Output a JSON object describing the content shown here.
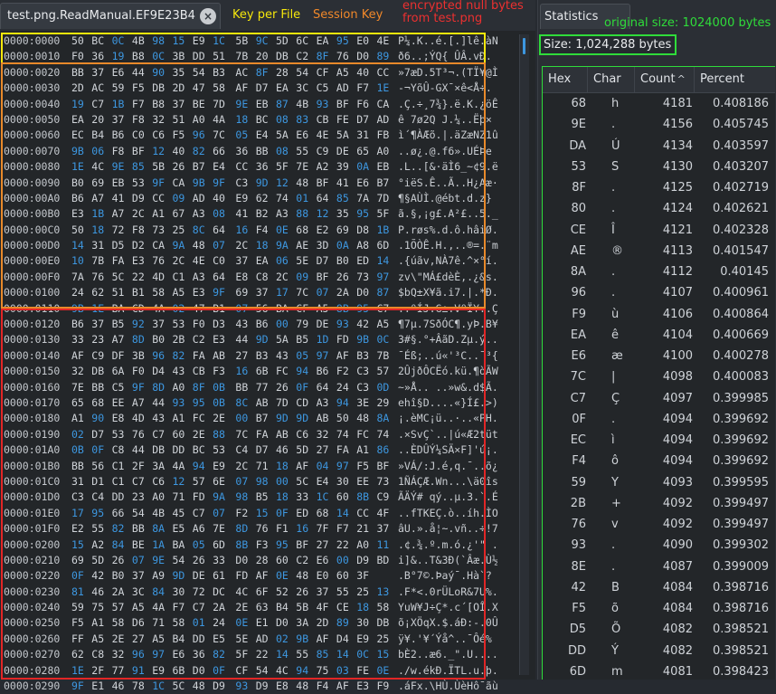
{
  "tab": {
    "title": "test.png.ReadManual.EF9E23B4",
    "close": "×"
  },
  "annotations": {
    "key_per_file": "Key per File",
    "session_key": "Session Key",
    "null_bytes_line1": "encrypted null bytes",
    "null_bytes_line2": "from test.png"
  },
  "colors": {
    "yellow": "#f5e70c",
    "orange": "#e8892a",
    "red": "#e22626",
    "green": "#2fdc3a",
    "hexblue": "#3d97e0"
  },
  "hex_rows": [
    {
      "addr": "0000:0000",
      "bytes": "50 BC 0C 4B 98 15 E9 1C 5B 9C 5D 6C EA 95 E0 4E",
      "text": "P¼.K..é.[.]lê.àN"
    },
    {
      "addr": "0000:0010",
      "bytes": "F0 36 19 B8 0C 3B DD 51 7B 20 DB C2 8F 76 D0 89",
      "text": "ð6..;ÝQ{ ÛÂ.vÐ."
    },
    {
      "addr": "0000:0020",
      "bytes": "BB 37 E6 44 90 35 54 B3 AC 8F 28 54 CF A5 40 CC",
      "text": "»7æD.5T³¬.(TÏ¥@Ì"
    },
    {
      "addr": "0000:0030",
      "bytes": "2D AC 59 F5 DB 2D 47 58 AF D7 EA 3C C5 AD F7 1E",
      "text": "-¬YõÛ-GX¯×ê<Å­÷."
    },
    {
      "addr": "0000:0040",
      "bytes": "19 C7 1B F7 B8 37 BE 7D 9E EB 87 4B 93 BF F6 CA",
      "text": ".Ç.÷¸7¾}.ë.K.¿öÊ"
    },
    {
      "addr": "0000:0050",
      "bytes": "EA 20 37 F8 32 51 A0 4A 18 BC 08 83 CB FE D7 AD",
      "text": "ê 7ø2Q J.¼..Ëþ×­"
    },
    {
      "addr": "0000:0060",
      "bytes": "EC B4 B6 C0 C6 F5 96 7C 05 E4 5A E6 4E 5A 31 FB",
      "text": "ì´¶ÀÆõ.|.äZæNZ1û"
    },
    {
      "addr": "0000:0070",
      "bytes": "9B 06 F8 BF 12 40 82 66 36 BB 08 55 C9 DE 65 A0",
      "text": "..ø¿.@.f6».UÉÞe "
    },
    {
      "addr": "0000:0080",
      "bytes": "1E 4C 9E 85 5B 26 B7 E4 CC 36 5F 7E A2 39 0A EB",
      "text": ".L..[&·äÌ6_~¢9.ë"
    },
    {
      "addr": "0000:0090",
      "bytes": "B0 69 EB 53 9F CA 9B 9F C3 9D 12 48 BF 41 E6 B7",
      "text": "°iëS.Ê..Ã..H¿Aæ·"
    },
    {
      "addr": "0000:00A0",
      "bytes": "B6 A7 41 D9 CC 09 AD 40 E9 62 74 01 64 85 7A 7D",
      "text": "¶§AÙÌ.­@ébt.d.z}"
    },
    {
      "addr": "0000:00B0",
      "bytes": "E3 1B A7 2C A1 67 A3 08 41 B2 A3 88 12 35 95 5F",
      "text": "ã.§,¡g£.A²£..5._"
    },
    {
      "addr": "0000:00C0",
      "bytes": "50 18 72 F8 73 25 8C 64 16 F4 0E 68 E2 69 D8 1B",
      "text": "P.røs%.d.ô.hâiØ."
    },
    {
      "addr": "0000:00D0",
      "bytes": "14 31 D5 D2 CA 9A 48 07 2C 18 9A AE 3D 0A A8 6D",
      "text": ".1ÕÒÊ.H.,..®=.¨m"
    },
    {
      "addr": "0000:00E0",
      "bytes": "10 7B FA E3 76 2C 4E C0 37 EA 06 5E D7 B0 ED 14",
      "text": ".{úãv,NÀ7ê.^×°í."
    },
    {
      "addr": "0000:00F0",
      "bytes": "7A 76 5C 22 4D C1 A3 64 E8 C8 2C 09 BF 26 73 97",
      "text": "zv\\\"MÁ£dèÈ,.¿&s."
    },
    {
      "addr": "0000:0100",
      "bytes": "24 62 51 B1 58 A5 E3 9F 69 37 17 7C 07 2A D0 87",
      "text": "$bQ±X¥ã.i7.|.*Ð."
    },
    {
      "addr": "0000:0110",
      "bytes": "9B 1E BA CD 4A 02 47 B1 07 56 BA CF A5 8B 95 C7",
      "text": "..ºÍJ.G±.VºÏ¥..Ç"
    },
    {
      "addr": "0000:0120",
      "bytes": "B6 37 B5 92 37 53 F0 D3 43 B6 00 79 DE 93 42 A5",
      "text": "¶7µ.7SðÓC¶.yÞ.B¥"
    },
    {
      "addr": "0000:0130",
      "bytes": "33 23 A7 8D B0 2B C2 E3 44 9D 5A B5 1D FD 9B 0C",
      "text": "3#§.°+ÂãD.Zµ.ý.."
    },
    {
      "addr": "0000:0140",
      "bytes": "AF C9 DF 3B 96 82 FA AB 27 B3 43 05 97 AF B3 7B",
      "text": "¯Éß;..ú«'³C..¯³{"
    },
    {
      "addr": "0000:0150",
      "bytes": "32 DB 6A F0 D4 43 CB F3 16 6B FC 94 B6 F2 C3 57",
      "text": "2ÛjðÔCËó.kü.¶òÃW"
    },
    {
      "addr": "0000:0160",
      "bytes": "7E BB C5 9F 8D A0 8F 0B BB 77 26 0F 64 24 C3 0D",
      "text": "~»Å.. ..»w&.d$Ã."
    },
    {
      "addr": "0000:0170",
      "bytes": "65 68 EE A7 44 93 95 0B 8C AB 7D CD A3 94 3E 29",
      "text": "ehî§D....«}Í£.>)"
    },
    {
      "addr": "0000:0180",
      "bytes": "A1 90 E8 4D 43 A1 FC 2E 00 B7 9D 9D AB 50 48 8A",
      "text": "¡.èMC¡ü..·..«PH."
    },
    {
      "addr": "0000:0190",
      "bytes": "02 D7 53 76 C7 60 2E 88 7C FA AB C6 32 74 FC 74",
      "text": ".×SvÇ`..|ú«Æ2tüt"
    },
    {
      "addr": "0000:01A0",
      "bytes": "0B 0F C8 44 DB DD BC 53 C4 D7 46 5D 27 FA A1 86",
      "text": "..ÈDÛÝ¼SÄ×F]'ú¡."
    },
    {
      "addr": "0000:01B0",
      "bytes": "BB 56 C1 2F 3A 4A 94 E9 2C 71 18 AF 04 97 F5 BF",
      "text": "»VÁ/:J.é,q.¯..õ¿"
    },
    {
      "addr": "0000:01C0",
      "bytes": "31 D1 C1 C7 C6 12 57 6E 07 98 00 5C E4 30 EE 73",
      "text": "1ÑÁÇÆ.Wn...\\ä0îs"
    },
    {
      "addr": "0000:01D0",
      "bytes": "C3 C4 DD 23 A0 71 FD 9A 98 B5 18 33 1C 60 8B C9",
      "text": "ÃÄÝ# qý..µ.3.`.É"
    },
    {
      "addr": "0000:01E0",
      "bytes": "17 95 66 54 4B 45 C7 07 F2 15 0F ED 68 14 CC 4F",
      "text": "..fTKEÇ.ò..íh.ÌO"
    },
    {
      "addr": "0000:01F0",
      "bytes": "E2 55 82 BB 8A E5 A6 7E 8D 76 F1 16 7F F7 21 37",
      "text": "âU.».å¦~.vñ..÷!7"
    },
    {
      "addr": "0000:0200",
      "bytes": "15 A2 84 BE 1A BA 05 6D 8B F3 95 BF 27 22 A0 11",
      "text": ".¢.¾.º.m.ó.¿'\" ."
    },
    {
      "addr": "0000:0210",
      "bytes": "69 5D 26 07 9E 54 26 33 D0 28 60 C2 E6 00 D9 BD",
      "text": "i]&..T&3Ð(`Âæ.Ù½"
    },
    {
      "addr": "0000:0220",
      "bytes": "0F 42 B0 37 A9 9D DE 61 FD AF 0E 48 E0 60 3F",
      "text": ".B°7©.Þaý¯.Hà`?"
    },
    {
      "addr": "0000:0230",
      "bytes": "81 46 2A 3C 84 30 72 DC 4C 6F 52 26 37 55 25 13",
      "text": ".F*<.0rÜLoR&7U%."
    },
    {
      "addr": "0000:0240",
      "bytes": "59 75 57 A5 4A F7 C7 2A 2E 63 B4 5B 4F CE 18 58",
      "text": "YuW¥J÷Ç*.c´[OÎ.X"
    },
    {
      "addr": "0000:0250",
      "bytes": "F5 A1 58 D6 71 58 01 24 0E E1 D0 3A 2D 89 30 DB",
      "text": "õ¡XÖqX.$.áÐ:-.0Û"
    },
    {
      "addr": "0000:0260",
      "bytes": "FF A5 2E 27 A5 B4 DD E5 5E AD 02 9B AF D4 E9 25",
      "text": "ÿ¥.'¥´Ýå^­..¯Ôé%"
    },
    {
      "addr": "0000:0270",
      "bytes": "62 C8 32 96 97 E6 36 82 5F 22 14 55 85 14 0C 15",
      "text": "bÈ2..æ6._\".U...."
    },
    {
      "addr": "0000:0280",
      "bytes": "1E 2F 77 91 E9 6B D0 0F CF 54 4C 94 75 03 FE 0E",
      "text": "./w.ékÐ.ÏTL.u.þ."
    },
    {
      "addr": "0000:0290",
      "bytes": "9F E1 46 78 1C 5C 48 D9 93 D9 E8 48 F4 AF E3 F9",
      "text": ".áFx.\\HÙ.ÙèHô¯ãù"
    }
  ],
  "blue_bytes": [
    "0C",
    "98",
    "15",
    "1C",
    "9C",
    "95",
    "19",
    "3B",
    "8F",
    "89",
    "90",
    "8F",
    "19",
    "1B",
    "9E",
    "87",
    "93",
    "18",
    "08",
    "83",
    "96",
    "05",
    "9B",
    "06",
    "12",
    "40",
    "82",
    "08",
    "1E",
    "9E",
    "85",
    "0A",
    "9F",
    "9B",
    "9D",
    "12",
    "09",
    "01",
    "85",
    "1B",
    "88",
    "12",
    "95",
    "8C",
    "16",
    "0E",
    "1B",
    "14",
    "9A",
    "07",
    "18",
    "0A",
    "10",
    "06",
    "14",
    "09",
    "97",
    "9F",
    "17",
    "07",
    "87",
    "1E",
    "8B",
    "95",
    "92",
    "00",
    "93",
    "8D",
    "1D",
    "9B",
    "0C",
    "96",
    "82",
    "05",
    "97",
    "16",
    "94",
    "9F",
    "8D",
    "8F",
    "0B",
    "0F",
    "0D",
    "95",
    "0B",
    "94",
    "90",
    "00",
    "9D",
    "02",
    "88",
    "0F",
    "04",
    "97",
    "12",
    "07",
    "98",
    "00",
    "9A",
    "98",
    "18",
    "1C",
    "8B",
    "15",
    "07",
    "0F",
    "15",
    "8A",
    "8D",
    "16",
    "84",
    "1A",
    "05",
    "8B",
    "9E",
    "00",
    "0F",
    "9D",
    "0E",
    "81",
    "84",
    "18",
    "01",
    "0E",
    "89",
    "02",
    "9B",
    "96",
    "97",
    "82",
    "14",
    "85",
    "0C",
    "1E",
    "91",
    "0F",
    "94",
    "03",
    "9F",
    "1C",
    "93"
  ],
  "statistics": {
    "tab_title": "Statistics",
    "original_size": "original size: 1024000 bytes",
    "size_label": "Size: 1,024,288 bytes",
    "columns": [
      "Hex",
      "Char",
      "Count",
      "Percent"
    ],
    "sort_indicator": "^",
    "rows": [
      {
        "hex": "68",
        "char": "h",
        "count": "4181",
        "pct": "0.408186"
      },
      {
        "hex": "9E",
        "char": ".",
        "count": "4156",
        "pct": "0.405745"
      },
      {
        "hex": "DA",
        "char": "Ú",
        "count": "4134",
        "pct": "0.403597"
      },
      {
        "hex": "53",
        "char": "S",
        "count": "4130",
        "pct": "0.403207"
      },
      {
        "hex": "8F",
        "char": ".",
        "count": "4125",
        "pct": "0.402719"
      },
      {
        "hex": "80",
        "char": ".",
        "count": "4124",
        "pct": "0.402621"
      },
      {
        "hex": "CE",
        "char": "Î",
        "count": "4121",
        "pct": "0.402328"
      },
      {
        "hex": "AE",
        "char": "®",
        "count": "4113",
        "pct": "0.401547"
      },
      {
        "hex": "8A",
        "char": ".",
        "count": "4112",
        "pct": "0.40145"
      },
      {
        "hex": "96",
        "char": ".",
        "count": "4107",
        "pct": "0.400961"
      },
      {
        "hex": "F9",
        "char": "ù",
        "count": "4106",
        "pct": "0.400864"
      },
      {
        "hex": "EA",
        "char": "ê",
        "count": "4104",
        "pct": "0.400669"
      },
      {
        "hex": "E6",
        "char": "æ",
        "count": "4100",
        "pct": "0.400278"
      },
      {
        "hex": "7C",
        "char": "|",
        "count": "4098",
        "pct": "0.400083"
      },
      {
        "hex": "C7",
        "char": "Ç",
        "count": "4097",
        "pct": "0.399985"
      },
      {
        "hex": "0F",
        "char": ".",
        "count": "4094",
        "pct": "0.399692"
      },
      {
        "hex": "EC",
        "char": "ì",
        "count": "4094",
        "pct": "0.399692"
      },
      {
        "hex": "F4",
        "char": "ô",
        "count": "4094",
        "pct": "0.399692"
      },
      {
        "hex": "59",
        "char": "Y",
        "count": "4093",
        "pct": "0.399595"
      },
      {
        "hex": "2B",
        "char": "+",
        "count": "4092",
        "pct": "0.399497"
      },
      {
        "hex": "76",
        "char": "v",
        "count": "4092",
        "pct": "0.399497"
      },
      {
        "hex": "93",
        "char": ".",
        "count": "4090",
        "pct": "0.399302"
      },
      {
        "hex": "8E",
        "char": ".",
        "count": "4087",
        "pct": "0.399009"
      },
      {
        "hex": "42",
        "char": "B",
        "count": "4084",
        "pct": "0.398716"
      },
      {
        "hex": "F5",
        "char": "õ",
        "count": "4084",
        "pct": "0.398716"
      },
      {
        "hex": "D5",
        "char": "Õ",
        "count": "4082",
        "pct": "0.398521"
      },
      {
        "hex": "DD",
        "char": "Ý",
        "count": "4082",
        "pct": "0.398521"
      },
      {
        "hex": "6D",
        "char": "m",
        "count": "4081",
        "pct": "0.398423"
      }
    ]
  }
}
